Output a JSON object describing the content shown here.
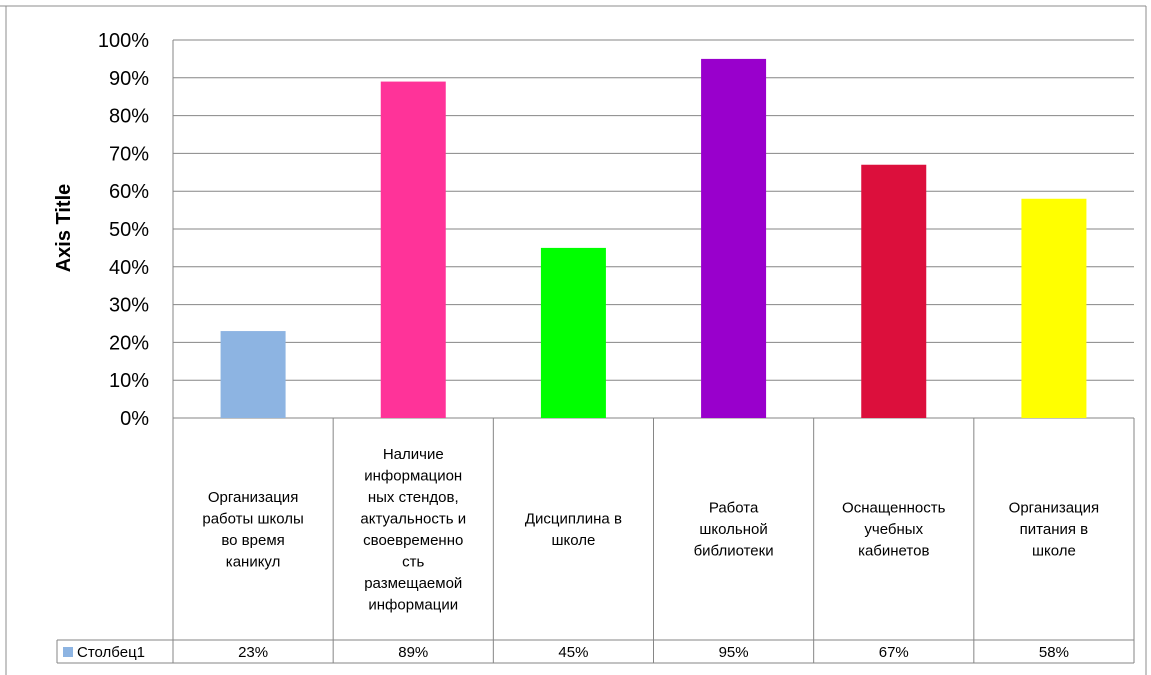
{
  "chart_data": {
    "type": "bar",
    "ylabel": "Axis Title",
    "ylim": [
      0,
      1
    ],
    "y_ticks": [
      "0%",
      "10%",
      "20%",
      "30%",
      "40%",
      "50%",
      "60%",
      "70%",
      "80%",
      "90%",
      "100%"
    ],
    "grid": true,
    "legend": "data-table-left",
    "categories": [
      "Организация работы школы во время каникул",
      "Наличие информационных стендов, актуальность и своевременность размещаемой информации",
      "Дисциплина в школе",
      "Работа школьной библиотеки",
      "Оснащенность учебных кабинетов",
      "Организация питания в школе"
    ],
    "category_lines": [
      [
        "Организация",
        "работы школы",
        "во время",
        "каникул"
      ],
      [
        "Наличие",
        "информацион",
        "ных стендов,",
        "актуальность и",
        "своевременно",
        "сть",
        "размещаемой",
        "информации"
      ],
      [
        "Дисциплина в",
        "школе"
      ],
      [
        "Работа",
        "школьной",
        "библиотеки"
      ],
      [
        "Оснащенность",
        "учебных",
        "кабинетов"
      ],
      [
        "Организация",
        "питания в",
        "школе"
      ]
    ],
    "series": [
      {
        "name": "Столбец1",
        "values": [
          0.23,
          0.89,
          0.45,
          0.95,
          0.67,
          0.58
        ],
        "labels": [
          "23%",
          "89%",
          "45%",
          "95%",
          "67%",
          "58%"
        ],
        "legend_color": "#8db4e2",
        "bar_colors": [
          "#8db4e2",
          "#ff3399",
          "#00ff00",
          "#9900cc",
          "#dc0f3c",
          "#ffff00"
        ]
      }
    ]
  }
}
